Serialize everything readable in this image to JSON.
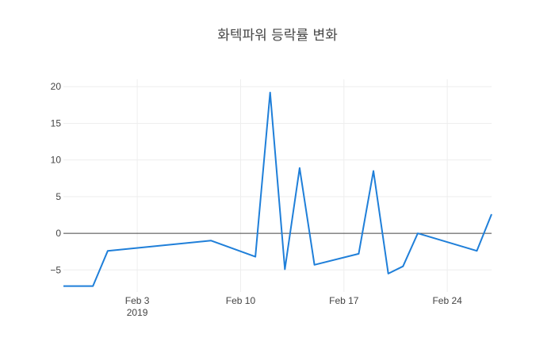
{
  "chart_data": {
    "type": "line",
    "title": "화텍파워 등락률 변화",
    "xlabel": "",
    "ylabel": "",
    "x_range": [
      "2019-01-29",
      "2019-02-27"
    ],
    "ylim": [
      -8,
      21
    ],
    "y_ticks": [
      {
        "value": 20,
        "label": "20"
      },
      {
        "value": 15,
        "label": "15"
      },
      {
        "value": 10,
        "label": "10"
      },
      {
        "value": 5,
        "label": "5"
      },
      {
        "value": 0,
        "label": "0"
      },
      {
        "value": -5,
        "label": "−5"
      }
    ],
    "x_ticks": [
      {
        "date": "2019-02-03",
        "label": "Feb 3",
        "sublabel": "2019"
      },
      {
        "date": "2019-02-10",
        "label": "Feb 10",
        "sublabel": ""
      },
      {
        "date": "2019-02-17",
        "label": "Feb 17",
        "sublabel": ""
      },
      {
        "date": "2019-02-24",
        "label": "Feb 24",
        "sublabel": ""
      }
    ],
    "grid": true,
    "series": [
      {
        "color": "#1f7fd9",
        "points": [
          {
            "x": "2019-01-29",
            "y": -7.2
          },
          {
            "x": "2019-01-31",
            "y": -7.2
          },
          {
            "x": "2019-02-01",
            "y": -2.4
          },
          {
            "x": "2019-02-08",
            "y": -1.0
          },
          {
            "x": "2019-02-11",
            "y": -3.2
          },
          {
            "x": "2019-02-12",
            "y": 19.2
          },
          {
            "x": "2019-02-13",
            "y": -4.9
          },
          {
            "x": "2019-02-14",
            "y": 8.9
          },
          {
            "x": "2019-02-15",
            "y": -4.3
          },
          {
            "x": "2019-02-18",
            "y": -2.8
          },
          {
            "x": "2019-02-19",
            "y": 8.5
          },
          {
            "x": "2019-02-20",
            "y": -5.5
          },
          {
            "x": "2019-02-21",
            "y": -4.5
          },
          {
            "x": "2019-02-22",
            "y": 0.0
          },
          {
            "x": "2019-02-26",
            "y": -2.4
          },
          {
            "x": "2019-02-27",
            "y": 2.6
          }
        ]
      }
    ]
  }
}
